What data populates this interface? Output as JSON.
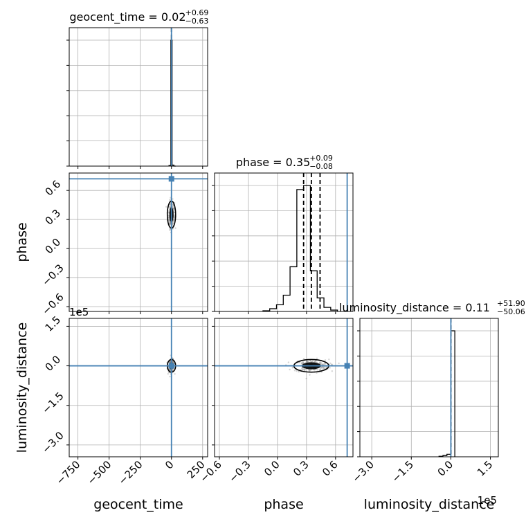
{
  "chart_data": {
    "type": "corner",
    "parameters": [
      "geocent_time",
      "phase",
      "luminosity_distance"
    ],
    "axis_labels": {
      "geocent_time": "geocent_time",
      "phase": "phase",
      "luminosity_distance": "luminosity_distance"
    },
    "truth_color": "#4682b4",
    "truths": {
      "geocent_time": 0.0,
      "phase": 0.72,
      "luminosity_distance": 0.0
    },
    "ranges": {
      "geocent_time": [
        -820,
        290
      ],
      "phase": [
        -0.65,
        0.78
      ],
      "luminosity_distance": [
        -3.45,
        1.8
      ]
    },
    "offset_labels": {
      "luminosity_distance": "1e5"
    },
    "ticks": {
      "geocent_time": {
        "values": [
          -750,
          -500,
          -250,
          0,
          250
        ],
        "labels": [
          "−750",
          "−500",
          "−250",
          "0",
          "250"
        ]
      },
      "phase": {
        "values": [
          -0.6,
          -0.3,
          0.0,
          0.3,
          0.6
        ],
        "labels": [
          "−0.6",
          "−0.3",
          "0.0",
          "0.3",
          "0.6"
        ]
      },
      "luminosity_distance": {
        "values": [
          -3.0,
          -1.5,
          0.0,
          1.5
        ],
        "labels": [
          "−3.0",
          "−1.5",
          "0.0",
          "1.5"
        ]
      }
    },
    "titles": [
      {
        "param": "geocent_time",
        "main": "geocent_time = 0.02",
        "plus": "+0.69",
        "minus": "−0.63"
      },
      {
        "param": "phase",
        "main": "phase = 0.35",
        "plus": "+0.09",
        "minus": "−0.08"
      },
      {
        "param": "luminosity_distance",
        "main": "luminosity_distance = 0.11",
        "plus": "+51.90",
        "minus": "−50.06"
      }
    ],
    "quantile_lines": {
      "geocent_time": [
        0.0
      ],
      "phase": [
        0.27,
        0.35,
        0.44
      ],
      "luminosity_distance": [
        0.0
      ]
    },
    "histograms": {
      "geocent_time": {
        "edges": [
          -20,
          -5,
          5,
          20,
          35
        ],
        "counts": [
          0.005,
          1.0,
          0.008,
          0
        ]
      },
      "phase": {
        "edges": [
          -0.15,
          -0.08,
          -0.01,
          0.06,
          0.13,
          0.2,
          0.27,
          0.34,
          0.41,
          0.48,
          0.55,
          0.62
        ],
        "counts": [
          0.005,
          0.02,
          0.05,
          0.12,
          0.33,
          0.9,
          0.93,
          0.3,
          0.1,
          0.03,
          0.01
        ]
      },
      "luminosity_distance": {
        "edges": [
          -0.45,
          -0.3,
          -0.15,
          0.0,
          0.15
        ],
        "counts": [
          0.004,
          0.01,
          0.02,
          1.0
        ]
      }
    },
    "grid": true
  }
}
